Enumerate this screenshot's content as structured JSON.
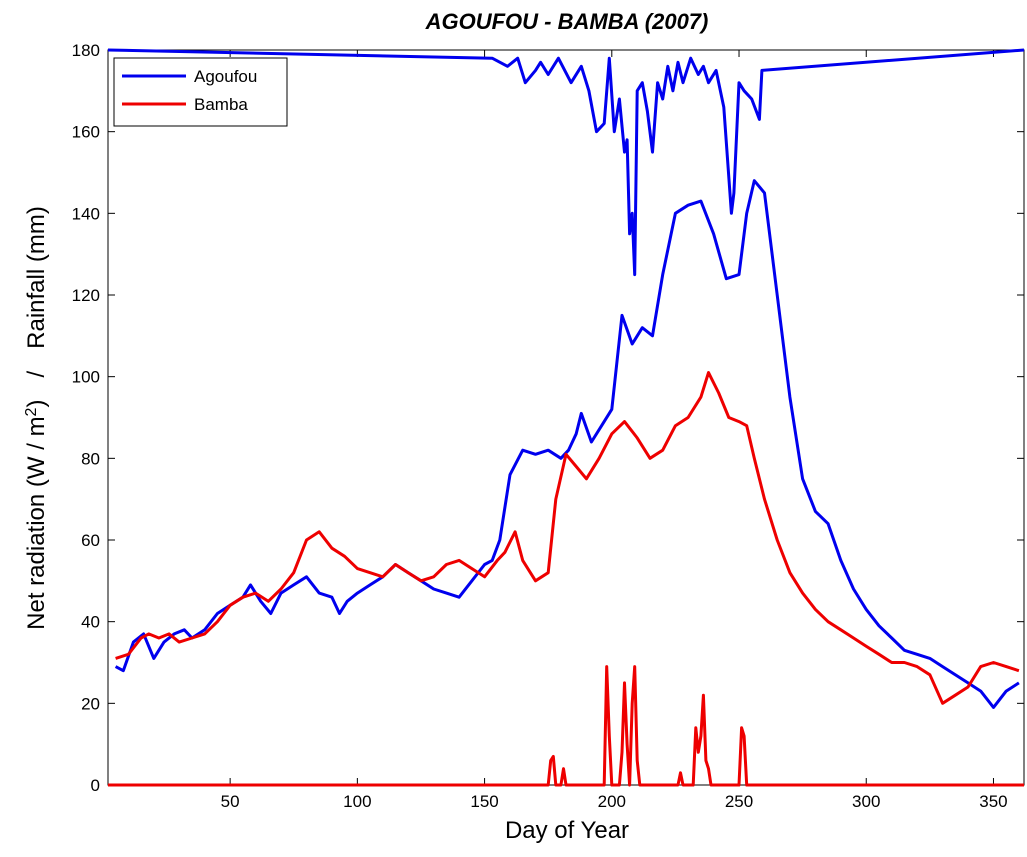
{
  "chart_data": {
    "type": "line",
    "title": "AGOUFOU - BAMBA (2007)",
    "xlabel": "Day of Year",
    "ylabel": "Net radiation (W / m²)     /     Rainfall  (mm)",
    "ylabel_parts": {
      "part1": "Net radiation (W / m",
      "sup": "2",
      "part2": ")",
      "separator": "/",
      "part3": "Rainfall  (mm)"
    },
    "xlim": [
      2,
      362
    ],
    "ylim": [
      0,
      180
    ],
    "xticks": [
      50,
      100,
      150,
      200,
      250,
      300,
      350
    ],
    "yticks": [
      0,
      20,
      40,
      60,
      80,
      100,
      120,
      140,
      160,
      180
    ],
    "legend_position": "top-left",
    "grid": false,
    "series": [
      {
        "name": "Agoufou",
        "color": "#0000ee",
        "values_x": [
          5,
          8,
          12,
          16,
          20,
          24,
          28,
          32,
          35,
          40,
          45,
          50,
          55,
          58,
          62,
          66,
          70,
          75,
          80,
          85,
          90,
          93,
          96,
          100,
          105,
          110,
          115,
          120,
          125,
          130,
          135,
          140,
          145,
          150,
          153,
          156,
          160,
          165,
          170,
          175,
          180,
          183,
          186,
          188,
          192,
          196,
          200,
          204,
          208,
          212,
          216,
          220,
          225,
          230,
          235,
          240,
          245,
          250,
          253,
          256,
          260,
          265,
          270,
          275,
          280,
          285,
          290,
          295,
          300,
          305,
          310,
          315,
          320,
          325,
          330,
          335,
          340,
          345,
          350,
          355,
          360
        ],
        "values_y": [
          29,
          28,
          35,
          37,
          31,
          35,
          37,
          38,
          36,
          38,
          42,
          44,
          46,
          49,
          45,
          42,
          47,
          49,
          51,
          47,
          46,
          42,
          45,
          47,
          49,
          51,
          54,
          52,
          50,
          48,
          47,
          46,
          50,
          54,
          55,
          60,
          76,
          82,
          81,
          82,
          80,
          82,
          86,
          91,
          84,
          88,
          92,
          115,
          108,
          112,
          110,
          125,
          140,
          142,
          143,
          135,
          124,
          125,
          140,
          148,
          145,
          120,
          95,
          75,
          67,
          64,
          55,
          48,
          43,
          39,
          36,
          33,
          32,
          31,
          29,
          27,
          25,
          23,
          19,
          23,
          25
        ]
      },
      {
        "name": "Bamba",
        "color": "#ee0000",
        "values_x": [
          5,
          10,
          15,
          18,
          22,
          26,
          30,
          35,
          40,
          45,
          50,
          55,
          60,
          65,
          70,
          75,
          80,
          85,
          90,
          95,
          100,
          105,
          110,
          115,
          120,
          125,
          130,
          135,
          140,
          145,
          150,
          155,
          158,
          162,
          165,
          170,
          175,
          178,
          182,
          186,
          190,
          195,
          200,
          205,
          210,
          215,
          220,
          225,
          230,
          235,
          238,
          242,
          246,
          250,
          253,
          256,
          260,
          265,
          270,
          275,
          280,
          285,
          290,
          295,
          300,
          305,
          310,
          315,
          320,
          325,
          330,
          335,
          340,
          345,
          350,
          355,
          360
        ],
        "values_y": [
          31,
          32,
          36,
          37,
          36,
          37,
          35,
          36,
          37,
          40,
          44,
          46,
          47,
          45,
          48,
          52,
          60,
          62,
          58,
          56,
          53,
          52,
          51,
          54,
          52,
          50,
          51,
          54,
          55,
          53,
          51,
          55,
          57,
          62,
          55,
          50,
          52,
          70,
          81,
          78,
          75,
          80,
          86,
          89,
          85,
          80,
          82,
          88,
          90,
          95,
          101,
          96,
          90,
          89,
          88,
          80,
          70,
          60,
          52,
          47,
          43,
          40,
          38,
          36,
          34,
          32,
          30,
          30,
          29,
          27,
          20,
          22,
          24,
          29,
          30,
          29,
          28
        ]
      },
      {
        "name": "Agoufou rainfall",
        "color": "#0000ee",
        "baseline": 180,
        "values_x": [
          153,
          159,
          163,
          166,
          170,
          172,
          175,
          179,
          184,
          188,
          191,
          194,
          197,
          199,
          201,
          203,
          205,
          206,
          207,
          208,
          209,
          210,
          212,
          214,
          216,
          218,
          220,
          222,
          224,
          226,
          228,
          231,
          234,
          236,
          238,
          241,
          244,
          247,
          248,
          250,
          252,
          255,
          258,
          259
        ],
        "values_y": [
          178,
          176,
          178,
          172,
          175,
          177,
          174,
          178,
          172,
          176,
          170,
          160,
          162,
          178,
          160,
          168,
          155,
          158,
          135,
          140,
          125,
          170,
          172,
          165,
          155,
          172,
          168,
          176,
          170,
          177,
          172,
          178,
          174,
          176,
          172,
          175,
          166,
          140,
          145,
          172,
          170,
          168,
          163,
          175
        ]
      },
      {
        "name": "Bamba rainfall",
        "color": "#ee0000",
        "baseline": 0,
        "values_x": [
          175,
          176,
          177,
          178,
          180,
          181,
          182,
          197,
          198,
          199,
          200,
          203,
          204,
          205,
          206,
          207,
          208,
          209,
          210,
          211,
          226,
          227,
          228,
          232,
          233,
          234,
          235,
          236,
          237,
          238,
          239,
          250,
          251,
          252,
          253
        ],
        "values_y": [
          0,
          6,
          7,
          0,
          0,
          4,
          0,
          0,
          29,
          12,
          0,
          0,
          8,
          25,
          10,
          0,
          20,
          29,
          6,
          0,
          0,
          3,
          0,
          0,
          14,
          8,
          12,
          22,
          6,
          4,
          0,
          0,
          14,
          12,
          0
        ]
      }
    ],
    "legend": [
      "Agoufou",
      "Bamba"
    ]
  }
}
